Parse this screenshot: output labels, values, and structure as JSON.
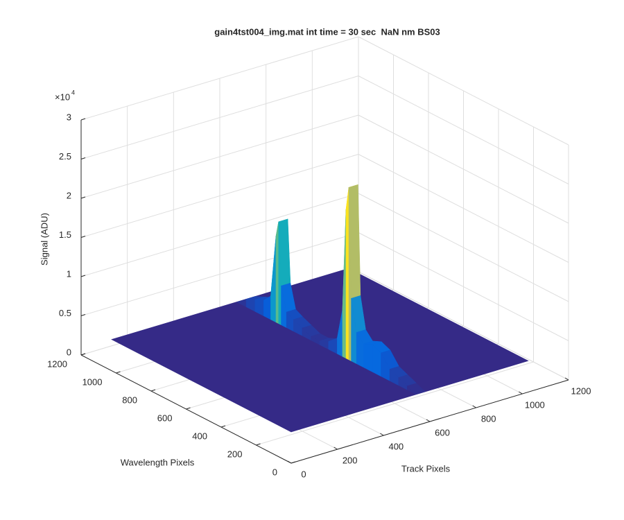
{
  "chart_data": {
    "type": "surface3d",
    "title": "gain4tst004_img.mat int time = 30 sec  NaN nm BS03",
    "xlabel": "Track Pixels",
    "ylabel": "Wavelength Pixels",
    "zlabel": "Signal (ADU)",
    "zscale_label": "×10",
    "zscale_exponent": "4",
    "xlim": [
      0,
      1200
    ],
    "ylim": [
      0,
      1200
    ],
    "zlim": [
      0,
      3
    ],
    "xticks": [
      0,
      200,
      400,
      600,
      800,
      1000,
      1200
    ],
    "yticks": [
      0,
      200,
      400,
      600,
      800,
      1000,
      1200
    ],
    "zticks": [
      0,
      0.5,
      1,
      1.5,
      2,
      2.5,
      3
    ],
    "grid": true,
    "colormap": [
      "#352a87",
      "#0363e1",
      "#1485d4",
      "#06a7c6",
      "#38b99e",
      "#92bf73",
      "#d9ba56",
      "#fcce2e",
      "#f9fb0e"
    ],
    "surface": {
      "baseline": 0.4,
      "track_pixels": [
        0,
        1024
      ],
      "spectrum_track_span": [
        540,
        580
      ],
      "wavelength": [
        0,
        50,
        100,
        150,
        200,
        250,
        300,
        340,
        370,
        384,
        400,
        420,
        450,
        500,
        550,
        600,
        650,
        700,
        740,
        770,
        785,
        800,
        830,
        870,
        920,
        970,
        1024
      ],
      "signal": [
        0.4,
        0.45,
        0.5,
        0.55,
        0.7,
        0.75,
        0.7,
        0.8,
        1.2,
        2.6,
        2.3,
        1.0,
        0.6,
        0.5,
        0.45,
        0.45,
        0.5,
        0.55,
        0.6,
        0.9,
        1.7,
        1.5,
        0.7,
        0.6,
        0.55,
        0.5,
        0.4
      ]
    }
  }
}
